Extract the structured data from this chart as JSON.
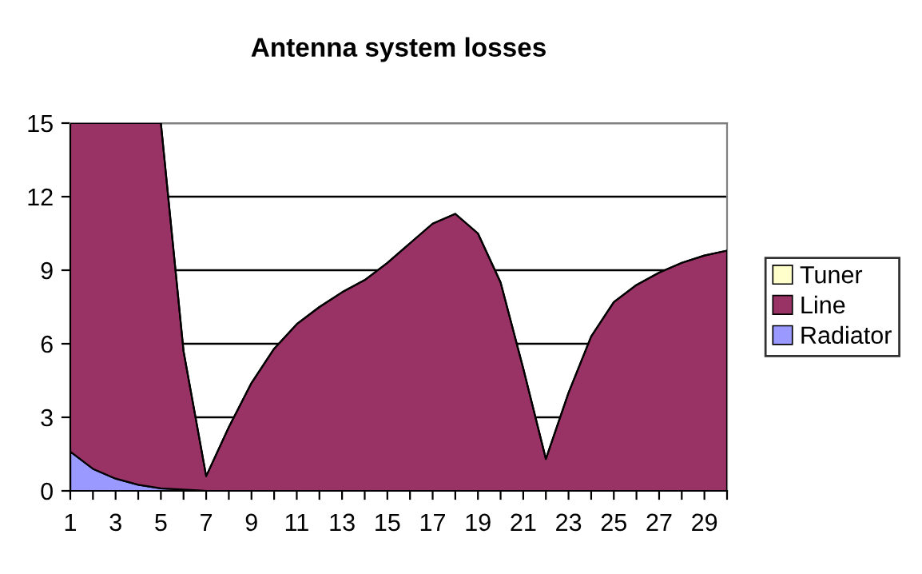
{
  "chart_data": {
    "type": "area",
    "title": "Antenna system losses",
    "stacked": true,
    "x": [
      1,
      2,
      3,
      4,
      5,
      6,
      7,
      8,
      9,
      10,
      11,
      12,
      13,
      14,
      15,
      16,
      17,
      18,
      19,
      20,
      21,
      22,
      23,
      24,
      25,
      26,
      27,
      28,
      29,
      30
    ],
    "series": [
      {
        "name": "Radiator",
        "color": "#9999ff",
        "values": [
          1.6,
          0.9,
          0.5,
          0.25,
          0.1,
          0.05,
          0,
          0,
          0,
          0,
          0,
          0,
          0,
          0,
          0,
          0,
          0,
          0,
          0,
          0,
          0,
          0,
          0,
          0,
          0,
          0,
          0,
          0,
          0,
          0
        ]
      },
      {
        "name": "Line",
        "color": "#993366",
        "values": [
          13.4,
          14.1,
          14.5,
          14.75,
          14.9,
          5.65,
          0.6,
          2.6,
          4.4,
          5.8,
          6.8,
          7.5,
          8.1,
          8.6,
          9.3,
          10.1,
          10.9,
          11.3,
          10.5,
          8.5,
          5.0,
          1.3,
          4.0,
          6.3,
          7.7,
          8.4,
          8.9,
          9.3,
          9.6,
          9.8
        ]
      },
      {
        "name": "Tuner",
        "color": "#ffffcc",
        "values": [
          null,
          null,
          null,
          null,
          null,
          null,
          null,
          null,
          null,
          null,
          null,
          null,
          null,
          null,
          null,
          null,
          null,
          null,
          null,
          null,
          null,
          null,
          null,
          null,
          null,
          null,
          null,
          null,
          null,
          null
        ]
      }
    ],
    "xlim": [
      1,
      30
    ],
    "xticks": [
      1,
      {
        "value": 2,
        "label": null
      },
      3,
      {
        "value": 4,
        "label": null
      },
      5,
      {
        "value": 6,
        "label": null
      },
      7,
      {
        "value": 8,
        "label": null
      },
      9,
      {
        "value": 10,
        "label": null
      },
      11,
      {
        "value": 12,
        "label": null
      },
      13,
      {
        "value": 14,
        "label": null
      },
      15,
      {
        "value": 16,
        "label": null
      },
      17,
      {
        "value": 18,
        "label": null
      },
      19,
      {
        "value": 20,
        "label": null
      },
      21,
      {
        "value": 22,
        "label": null
      },
      23,
      {
        "value": 24,
        "label": null
      },
      25,
      {
        "value": 26,
        "label": null
      },
      27,
      {
        "value": 28,
        "label": null
      },
      29,
      {
        "value": 30,
        "label": null
      }
    ],
    "ylim": [
      0,
      15
    ],
    "yticks": [
      0,
      3,
      6,
      9,
      12,
      15
    ],
    "grid": "y",
    "legend": "right"
  }
}
